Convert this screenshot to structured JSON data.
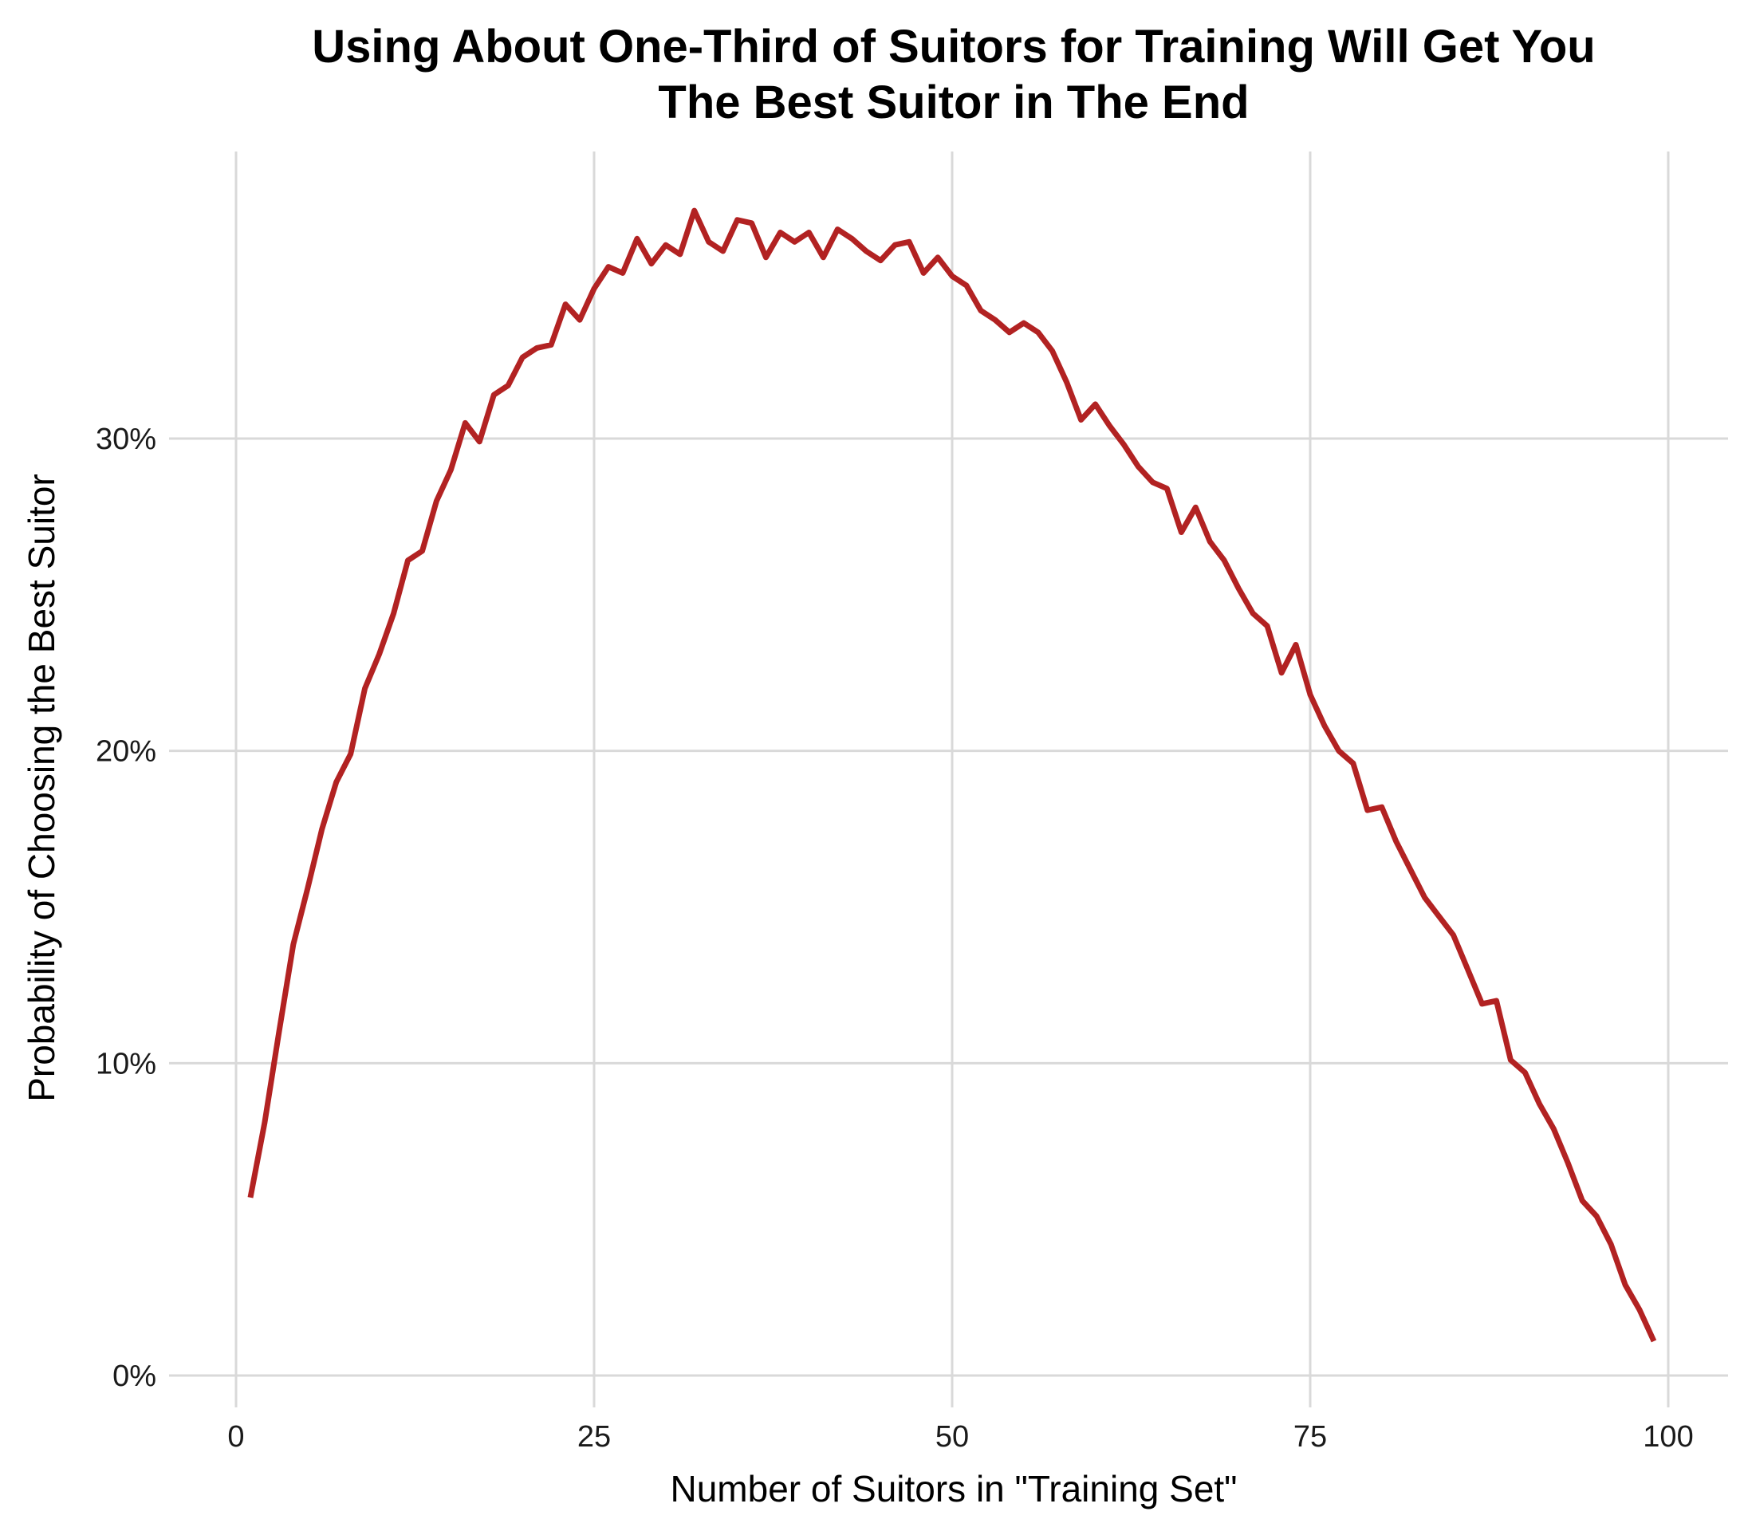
{
  "chart_data": {
    "type": "line",
    "title": "Using About One-Third of Suitors for Training Will Get You The Best Suitor in The End",
    "title_lines": [
      "Using About One-Third of Suitors for Training Will Get You",
      "The Best Suitor in The End"
    ],
    "xlabel": "Number of Suitors in \"Training Set\"",
    "ylabel": "Probability of Choosing the Best Suitor",
    "xlim": [
      -3,
      103
    ],
    "ylim": [
      -0.8,
      39.5
    ],
    "x_ticks": [
      {
        "value": 0,
        "label": "0"
      },
      {
        "value": 25,
        "label": "25"
      },
      {
        "value": 50,
        "label": "50"
      },
      {
        "value": 75,
        "label": "75"
      },
      {
        "value": 100,
        "label": "100"
      }
    ],
    "y_ticks": [
      {
        "value": 0,
        "label": "0%"
      },
      {
        "value": 10,
        "label": "10%"
      },
      {
        "value": 20,
        "label": "20%"
      },
      {
        "value": 30,
        "label": "30%"
      }
    ],
    "grid": true,
    "legend": "none",
    "line_color": "#b22222",
    "grid_color": "#d9d9d9",
    "series": [
      {
        "x": [
          1,
          2,
          3,
          4,
          5,
          6,
          7,
          8,
          9,
          10,
          11,
          12,
          13,
          14,
          15,
          16,
          17,
          18,
          19,
          20,
          21,
          22,
          23,
          24,
          25,
          26,
          27,
          28,
          29,
          30,
          31,
          32,
          33,
          34,
          35,
          36,
          37,
          38,
          39,
          40,
          41,
          42,
          43,
          44,
          45,
          46,
          47,
          48,
          49,
          50,
          51,
          52,
          53,
          54,
          55,
          56,
          57,
          58,
          59,
          60,
          61,
          62,
          63,
          64,
          65,
          66,
          67,
          68,
          69,
          70,
          71,
          72,
          73,
          74,
          75,
          76,
          77,
          78,
          79,
          80,
          81,
          82,
          83,
          84,
          85,
          86,
          87,
          88,
          89,
          90,
          91,
          92,
          93,
          94,
          95,
          96,
          97,
          98,
          99
        ],
        "values": [
          5.7,
          8.1,
          11.0,
          13.8,
          15.6,
          17.5,
          19.0,
          19.9,
          22.0,
          23.1,
          24.4,
          26.1,
          26.4,
          28.0,
          29.0,
          30.5,
          29.9,
          31.4,
          31.7,
          32.6,
          32.9,
          33.0,
          34.3,
          33.8,
          34.8,
          35.5,
          35.3,
          36.4,
          35.6,
          36.2,
          35.9,
          37.3,
          36.3,
          36.0,
          37.0,
          36.9,
          35.8,
          36.6,
          36.3,
          36.6,
          35.8,
          36.7,
          36.4,
          36.0,
          35.7,
          36.2,
          36.3,
          35.3,
          35.8,
          35.2,
          34.9,
          34.1,
          33.8,
          33.4,
          33.7,
          33.4,
          32.8,
          31.8,
          30.6,
          31.1,
          30.4,
          29.8,
          29.1,
          28.6,
          28.4,
          27.0,
          27.8,
          26.7,
          26.1,
          25.2,
          24.4,
          24.0,
          22.5,
          23.4,
          21.8,
          20.8,
          20.0,
          19.6,
          18.1,
          18.2,
          17.1,
          16.2,
          15.3,
          14.7,
          14.1,
          13.0,
          11.9,
          12.0,
          10.1,
          9.7,
          8.7,
          7.9,
          6.8,
          5.6,
          5.1,
          4.2,
          2.9,
          2.1,
          1.1
        ]
      }
    ]
  }
}
